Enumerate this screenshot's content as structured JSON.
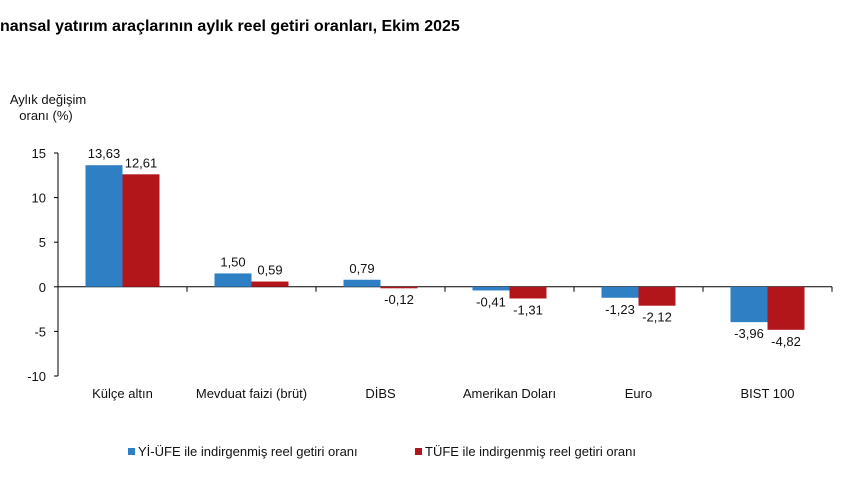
{
  "chart_data": {
    "type": "bar",
    "title": "nansal yatırım araçlarının aylık reel getiri oranları, Ekim 2025",
    "ylabel": [
      "Aylık değişim",
      "oranı (%)"
    ],
    "ylim": [
      -10,
      15
    ],
    "yticks": [
      15,
      10,
      5,
      0,
      -5,
      -10
    ],
    "categories": [
      "Külçe altın",
      "Mevduat faizi (brüt)",
      "DİBS",
      "Amerikan Doları",
      "Euro",
      "BIST 100"
    ],
    "series": [
      {
        "name": "Yİ-ÜFE ile indirgenmiş reel getiri oranı",
        "color": "#2e7fc4",
        "values": [
          13.63,
          1.5,
          0.79,
          -0.41,
          -1.23,
          -3.96
        ],
        "labels": [
          "13,63",
          "1,50",
          "0,79",
          "-0,41",
          "-1,23",
          "-3,96"
        ]
      },
      {
        "name": "TÜFE ile indirgenmiş reel getiri oranı",
        "color": "#b2161b",
        "values": [
          12.61,
          0.59,
          -0.12,
          -1.31,
          -2.12,
          -4.82
        ],
        "labels": [
          "12,61",
          "0,59",
          "-0,12",
          "-1,31",
          "-2,12",
          "-4,82"
        ]
      }
    ],
    "legend": "bottom",
    "grid": false
  }
}
